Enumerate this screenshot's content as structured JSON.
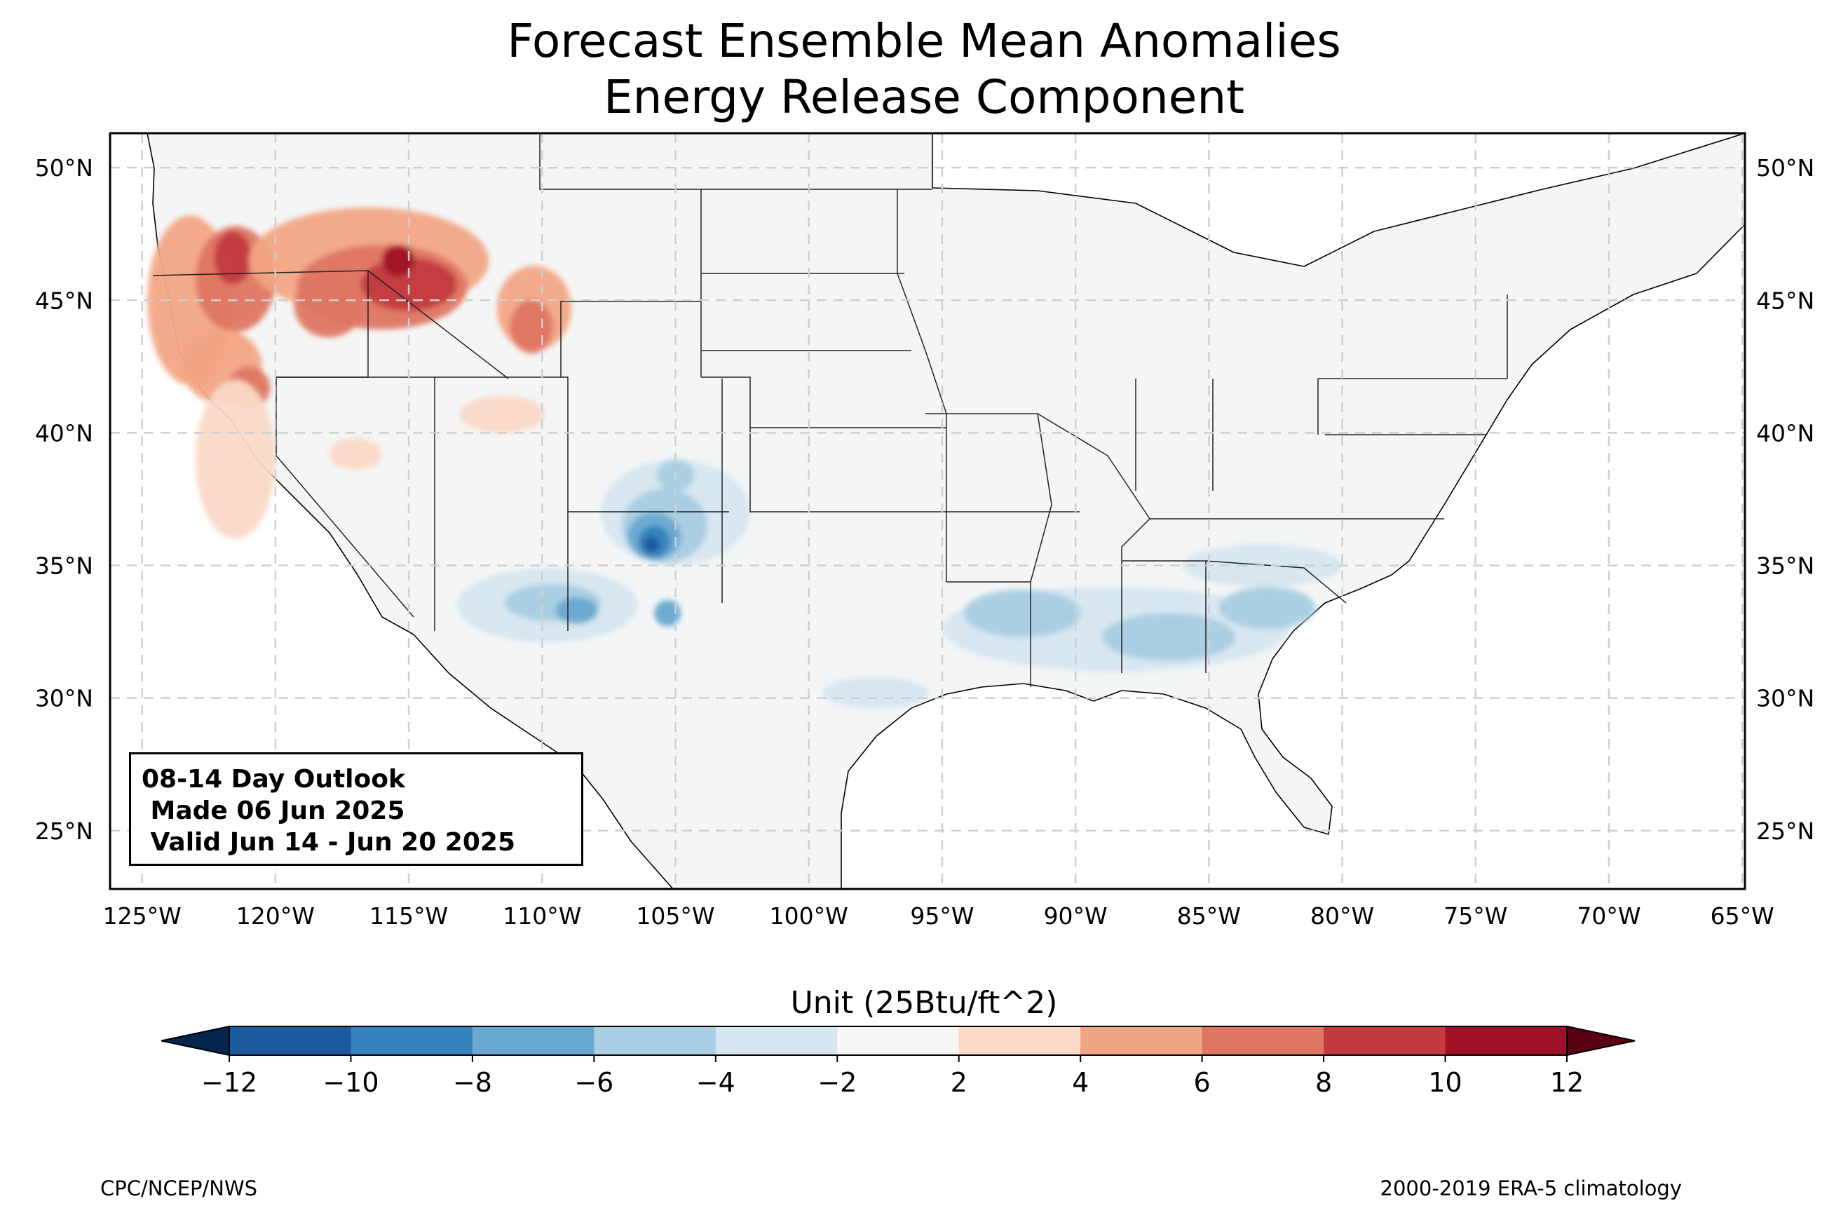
{
  "title": {
    "line1": "Forecast Ensemble Mean Anomalies",
    "line2": "Energy Release Component"
  },
  "outlook": {
    "line1": "08-14 Day Outlook",
    "line2": " Made 06 Jun 2025",
    "line3": " Valid Jun 14 - Jun 20 2025"
  },
  "map": {
    "extent": {
      "lon": [
        -126.2,
        -64.9
      ],
      "lat": [
        22.8,
        51.3
      ]
    },
    "lat_ticks": [
      {
        "value": 50,
        "label": "50°N"
      },
      {
        "value": 45,
        "label": "45°N"
      },
      {
        "value": 40,
        "label": "40°N"
      },
      {
        "value": 35,
        "label": "35°N"
      },
      {
        "value": 30,
        "label": "30°N"
      },
      {
        "value": 25,
        "label": "25°N"
      }
    ],
    "lon_ticks": [
      {
        "value": -125,
        "label": "125°W"
      },
      {
        "value": -120,
        "label": "120°W"
      },
      {
        "value": -115,
        "label": "115°W"
      },
      {
        "value": -110,
        "label": "110°W"
      },
      {
        "value": -105,
        "label": "105°W"
      },
      {
        "value": -100,
        "label": "100°W"
      },
      {
        "value": -95,
        "label": "95°W"
      },
      {
        "value": -90,
        "label": "90°W"
      },
      {
        "value": -85,
        "label": "85°W"
      },
      {
        "value": -80,
        "label": "80°W"
      },
      {
        "value": -75,
        "label": "75°W"
      },
      {
        "value": -70,
        "label": "70°W"
      },
      {
        "value": -65,
        "label": "65°W"
      }
    ],
    "gridlines": true,
    "land_color": "#f4f6f6",
    "anomalies": [
      {
        "level": 4,
        "lon": -123.2,
        "lat": 45.0,
        "rlon": 1.6,
        "rlat": 3.2
      },
      {
        "level": 6,
        "lon": -121.5,
        "lat": 45.8,
        "rlon": 1.5,
        "rlat": 2.0
      },
      {
        "level": 8,
        "lon": -121.6,
        "lat": 46.6,
        "rlon": 0.7,
        "rlat": 1.0
      },
      {
        "level": 4,
        "lon": -122.0,
        "lat": 42.5,
        "rlon": 1.5,
        "rlat": 1.4
      },
      {
        "level": 6,
        "lon": -121.0,
        "lat": 41.7,
        "rlon": 0.8,
        "rlat": 0.8
      },
      {
        "level": 2,
        "lon": -121.5,
        "lat": 39.0,
        "rlon": 1.5,
        "rlat": 3.0
      },
      {
        "level": 4,
        "lon": -116.5,
        "lat": 46.5,
        "rlon": 4.5,
        "rlat": 2.0
      },
      {
        "level": 6,
        "lon": -116.0,
        "lat": 45.5,
        "rlon": 3.2,
        "rlat": 1.6
      },
      {
        "level": 8,
        "lon": -115.0,
        "lat": 45.6,
        "rlon": 1.8,
        "rlat": 1.0
      },
      {
        "level": 10,
        "lon": -115.4,
        "lat": 46.5,
        "rlon": 0.6,
        "rlat": 0.6
      },
      {
        "level": 6,
        "lon": -118.0,
        "lat": 44.8,
        "rlon": 1.3,
        "rlat": 1.2
      },
      {
        "level": 4,
        "lon": -110.3,
        "lat": 44.7,
        "rlon": 1.4,
        "rlat": 1.6
      },
      {
        "level": 6,
        "lon": -110.4,
        "lat": 44.0,
        "rlon": 0.8,
        "rlat": 1.0
      },
      {
        "level": 2,
        "lon": -111.5,
        "lat": 40.7,
        "rlon": 1.6,
        "rlat": 0.7
      },
      {
        "level": 2,
        "lon": -117.0,
        "lat": 39.2,
        "rlon": 1.0,
        "rlat": 0.6
      },
      {
        "level": -2,
        "lon": -105.0,
        "lat": 37.0,
        "rlon": 2.8,
        "rlat": 2.0
      },
      {
        "level": -4,
        "lon": -105.4,
        "lat": 36.5,
        "rlon": 1.6,
        "rlat": 1.4
      },
      {
        "level": -6,
        "lon": -105.8,
        "lat": 36.1,
        "rlon": 1.0,
        "rlat": 0.9
      },
      {
        "level": -8,
        "lon": -105.8,
        "lat": 35.9,
        "rlon": 0.6,
        "rlat": 0.6
      },
      {
        "level": -10,
        "lon": -105.9,
        "lat": 35.8,
        "rlon": 0.3,
        "rlat": 0.3
      },
      {
        "level": -4,
        "lon": -105.0,
        "lat": 38.4,
        "rlon": 0.7,
        "rlat": 0.6
      },
      {
        "level": -2,
        "lon": -109.8,
        "lat": 33.5,
        "rlon": 3.4,
        "rlat": 1.4
      },
      {
        "level": -4,
        "lon": -109.6,
        "lat": 33.6,
        "rlon": 1.8,
        "rlat": 0.7
      },
      {
        "level": -6,
        "lon": -108.7,
        "lat": 33.3,
        "rlon": 0.8,
        "rlat": 0.5
      },
      {
        "level": -6,
        "lon": -105.3,
        "lat": 33.2,
        "rlon": 0.5,
        "rlat": 0.5
      },
      {
        "level": -2,
        "lon": -97.5,
        "lat": 30.2,
        "rlon": 2.0,
        "rlat": 0.6
      },
      {
        "level": -2,
        "lon": -88.5,
        "lat": 32.6,
        "rlon": 6.5,
        "rlat": 1.6
      },
      {
        "level": -4,
        "lon": -92.0,
        "lat": 33.2,
        "rlon": 2.2,
        "rlat": 0.9
      },
      {
        "level": -4,
        "lon": -86.5,
        "lat": 32.3,
        "rlon": 2.5,
        "rlat": 0.9
      },
      {
        "level": -4,
        "lon": -82.8,
        "lat": 33.4,
        "rlon": 1.8,
        "rlat": 0.8
      },
      {
        "level": -2,
        "lon": -83.0,
        "lat": 35.0,
        "rlon": 3.0,
        "rlat": 0.8
      }
    ]
  },
  "colorbar": {
    "label": "Unit (25Btu/ft^2)",
    "ticks": [
      "−12",
      "−10",
      "−8",
      "−6",
      "−4",
      "−2",
      "2",
      "4",
      "6",
      "8",
      "10",
      "12"
    ],
    "colors": [
      "#1b5a9c",
      "#3581bc",
      "#68a8d0",
      "#a8cfe3",
      "#d6e6f0",
      "#f7f7f7",
      "#fad9c7",
      "#f2a584",
      "#df7662",
      "#c23a3e",
      "#9f1126"
    ],
    "under_color": "#05264e",
    "over_color": "#5a0013"
  },
  "credits": {
    "left": "CPC/NCEP/NWS",
    "right": "2000-2019 ERA-5 climatology"
  }
}
